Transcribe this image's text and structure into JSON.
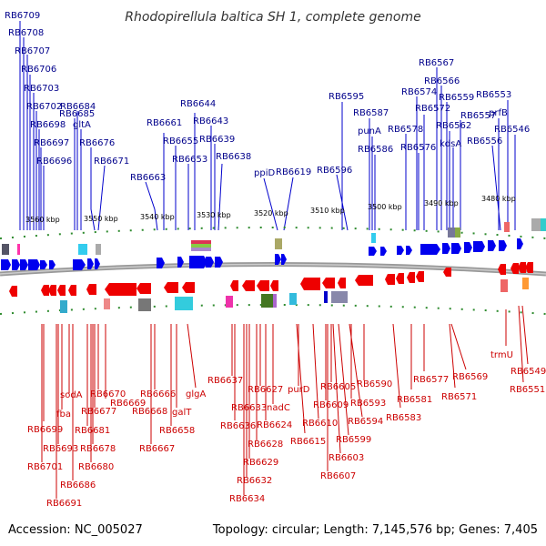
{
  "title": "Rhodopirellula baltica SH 1, complete genome",
  "footer": {
    "accession": "Accession: NC_005027",
    "summary": "Topology: circular; Length: 7,145,576 bp; Genes: 7,405"
  },
  "colors": {
    "forward": "#0000ee",
    "reverse": "#ee0000",
    "backbone": "#888888",
    "tick": "#228b22"
  },
  "scale_labels": [
    "3560 kbp",
    "3550 kbp",
    "3540 kbp",
    "3530 kbp",
    "3520 kbp",
    "3510 kbp",
    "3500 kbp",
    "3490 kbp",
    "3480 kbp"
  ],
  "top_labels": [
    "RB6709",
    "RB6708",
    "RB6707",
    "RB6706",
    "RB6703",
    "RB6702",
    "RB6698",
    "RB6697",
    "RB6696",
    "RB6685",
    "RB6684",
    "gltA",
    "RB6676",
    "RB6671",
    "RB6663",
    "RB6661",
    "RB6655",
    "RB6653",
    "RB6644",
    "RB6643",
    "RB6639",
    "RB6638",
    "ppiD",
    "RB6619",
    "RB6596",
    "RB6595",
    "RB6587",
    "punA",
    "RB6586",
    "RB6578",
    "RB6576",
    "RB6574",
    "RB6572",
    "RB6567",
    "RB6566",
    "RB6559",
    "RB6562",
    "kdsA",
    "RB6557",
    "RB6556",
    "RB6553",
    "prfB",
    "RB6546"
  ],
  "bottom_labels": [
    "RB6699",
    "RB6701",
    "RB6693",
    "RB6691",
    "fba",
    "sodA",
    "RB6686",
    "RB6681",
    "RB6680",
    "RB6678",
    "RB6677",
    "RB6670",
    "RB6669",
    "RB6668",
    "RB6666",
    "RB6667",
    "galT",
    "RB6658",
    "glgA",
    "RB6637",
    "RB6636",
    "RB6633",
    "RB6634",
    "RB6632",
    "RB6629",
    "RB6628",
    "RB6627",
    "RB6624",
    "nadC",
    "RB6615",
    "purD",
    "RB6610",
    "RB6609",
    "RB6607",
    "RB6605",
    "RB6603",
    "RB6599",
    "RB6594",
    "RB6593",
    "RB6590",
    "RB6583",
    "RB6581",
    "RB6577",
    "RB6571",
    "RB6569",
    "trmU",
    "RB6551",
    "RB6549"
  ]
}
